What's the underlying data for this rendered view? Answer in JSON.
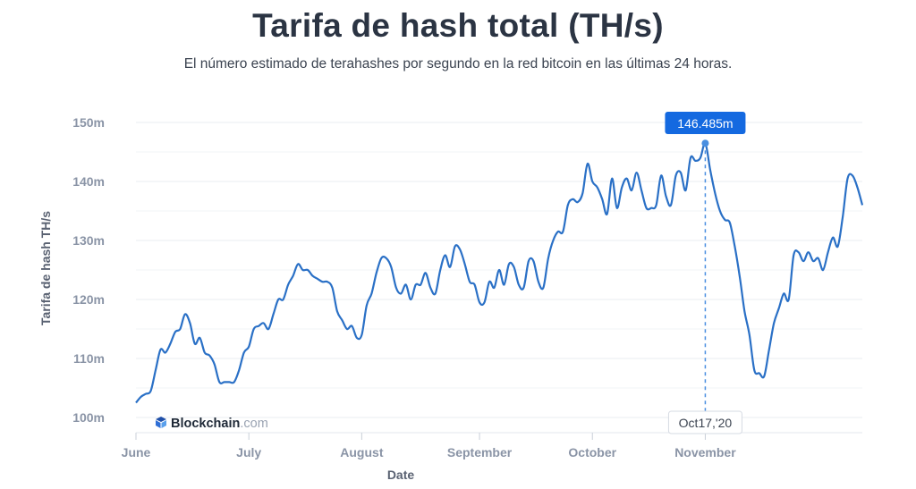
{
  "chart_data": {
    "type": "line",
    "title": "Tarifa de hash total (TH/s)",
    "subtitle": "El número estimado de terahashes por segundo en la red bitcoin en las últimas 24 horas.",
    "xlabel": "Date",
    "ylabel": "Tarifa de hash TH/s",
    "ylim": [
      100,
      150
    ],
    "yticks": [
      "100m",
      "110m",
      "120m",
      "130m",
      "140m",
      "150m"
    ],
    "ytick_values": [
      100,
      110,
      120,
      130,
      140,
      150
    ],
    "xticks": [
      "June",
      "July",
      "August",
      "September",
      "October",
      "November"
    ],
    "grid": true,
    "highlight": {
      "label": "146.485m",
      "date": "Oct17,'20",
      "value": 146.485
    },
    "series": [
      {
        "color": "#2a70c6",
        "values": [
          102.5,
          103.5,
          104.0,
          104.5,
          108.0,
          111.5,
          111.0,
          112.5,
          114.5,
          115.0,
          117.5,
          116.0,
          112.5,
          113.5,
          111.0,
          110.5,
          109.0,
          106.0,
          106.0,
          106.0,
          106.0,
          108.0,
          111.0,
          112.0,
          115.0,
          115.5,
          116.0,
          115.0,
          117.5,
          120.0,
          120.0,
          122.5,
          124.0,
          126.0,
          125.0,
          125.0,
          124.0,
          123.5,
          123.0,
          123.0,
          122.0,
          118.0,
          116.5,
          115.0,
          115.5,
          113.5,
          114.0,
          119.0,
          121.0,
          124.5,
          127.0,
          127.0,
          125.5,
          122.0,
          121.0,
          122.5,
          120.0,
          122.5,
          122.5,
          124.5,
          122.0,
          121.0,
          125.0,
          127.5,
          125.5,
          129.0,
          128.5,
          126.0,
          123.0,
          122.5,
          119.5,
          119.5,
          123.0,
          122.0,
          125.0,
          122.5,
          126.0,
          125.5,
          122.5,
          122.0,
          126.5,
          126.5,
          123.0,
          122.0,
          127.0,
          130.0,
          131.5,
          131.5,
          136.0,
          137.0,
          136.5,
          138.0,
          143.0,
          140.0,
          139.0,
          137.0,
          134.5,
          140.5,
          135.5,
          139.0,
          140.5,
          138.5,
          141.5,
          138.5,
          135.5,
          135.5,
          136.0,
          141.0,
          137.5,
          136.0,
          141.0,
          141.5,
          138.5,
          144.0,
          143.5,
          144.0,
          146.485,
          142.0,
          138.0,
          135.0,
          133.5,
          133.0,
          129.0,
          124.0,
          118.0,
          114.0,
          108.0,
          107.5,
          107.0,
          111.5,
          116.0,
          118.5,
          121.0,
          120.0,
          127.5,
          128.0,
          126.5,
          128.0,
          126.5,
          127.0,
          125.0,
          128.0,
          130.5,
          129.0,
          134.0,
          140.5,
          141.0,
          139.0,
          136.0
        ]
      }
    ]
  },
  "watermark": {
    "brand": "Blockchain",
    "suffix": ".com"
  }
}
